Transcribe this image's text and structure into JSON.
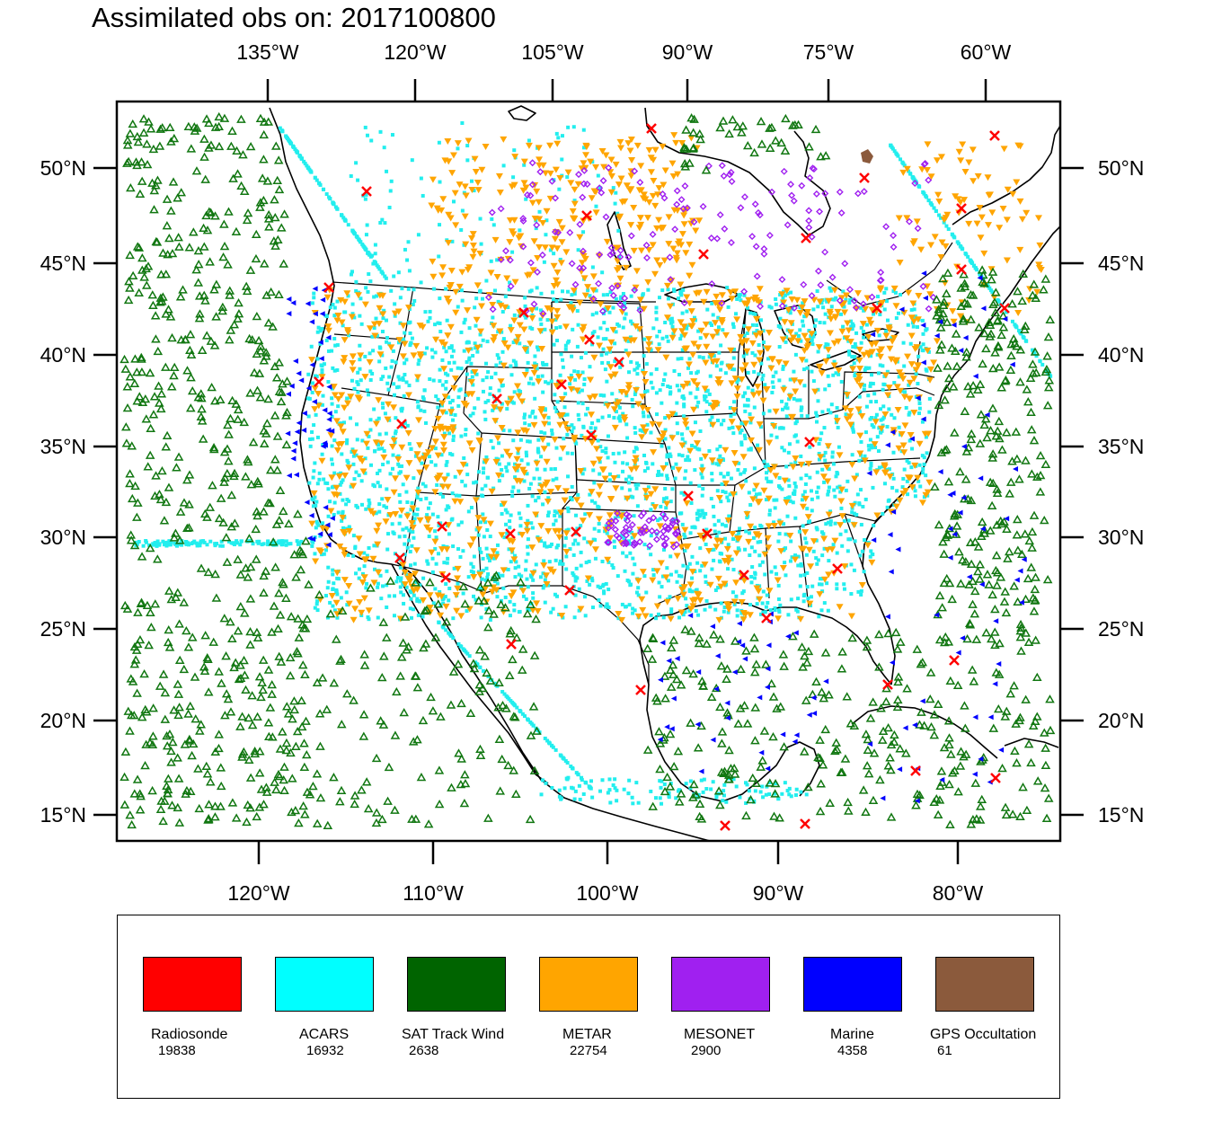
{
  "title": "Assimilated obs on: 2017100800",
  "axes": {
    "top_lon_labels": [
      "135°W",
      "120°W",
      "105°W",
      "90°W",
      "75°W",
      "60°W"
    ],
    "bottom_lon_labels": [
      "120°W",
      "110°W",
      "100°W",
      "90°W",
      "80°W"
    ],
    "lat_labels": [
      "50°N",
      "45°N",
      "40°N",
      "35°N",
      "30°N",
      "25°N",
      "20°N",
      "15°N"
    ]
  },
  "legend": [
    {
      "name": "Radiosonde",
      "count": "19838",
      "color": "#ff0000"
    },
    {
      "name": "ACARS",
      "count": "16932",
      "color": "#00ffff"
    },
    {
      "name": "SAT Track Wind",
      "count": "2638",
      "color": "#006400"
    },
    {
      "name": "METAR",
      "count": "22754",
      "color": "#ffa500"
    },
    {
      "name": "MESONET",
      "count": "2900",
      "color": "#a020f0"
    },
    {
      "name": "Marine",
      "count": "4358",
      "color": "#0000ff"
    },
    {
      "name": "GPS Occultation",
      "count": "61",
      "color": "#8b5a3c"
    }
  ],
  "colors": {
    "radiosonde": "#ff0000",
    "acars": "#22eeee",
    "sat_track_wind": "#117711",
    "metar": "#ffa500",
    "mesonet": "#a020f0",
    "marine": "#0000ff",
    "gps": "#8b5a3c"
  }
}
